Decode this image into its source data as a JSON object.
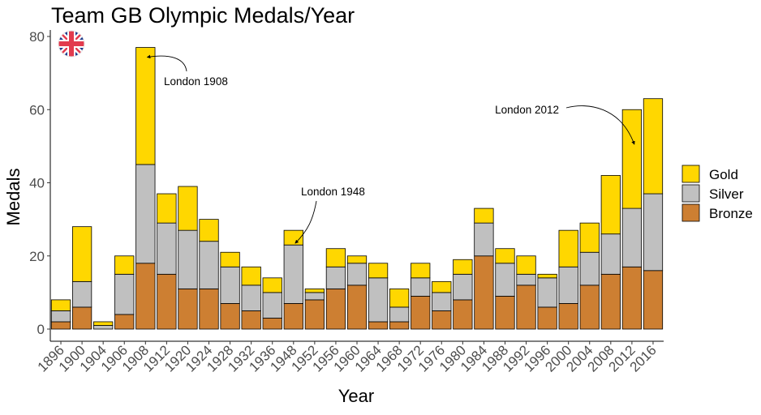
{
  "chart_data": {
    "type": "bar",
    "stacked": true,
    "title": "Team GB Olympic Medals/Year",
    "xlabel": "Year",
    "ylabel": "Medals",
    "ylim": [
      0,
      80
    ],
    "yticks": [
      0,
      20,
      40,
      60,
      80
    ],
    "grid": false,
    "legend_position": "right",
    "categories": [
      "1896",
      "1900",
      "1904",
      "1906",
      "1908",
      "1912",
      "1920",
      "1924",
      "1928",
      "1932",
      "1936",
      "1948",
      "1952",
      "1956",
      "1960",
      "1964",
      "1968",
      "1972",
      "1976",
      "1980",
      "1984",
      "1988",
      "1992",
      "1996",
      "2000",
      "2004",
      "2008",
      "2012",
      "2016"
    ],
    "series": [
      {
        "name": "Bronze",
        "color": "#CD7F32",
        "values": [
          2,
          6,
          0,
          4,
          18,
          15,
          11,
          11,
          7,
          5,
          3,
          7,
          8,
          11,
          12,
          2,
          2,
          9,
          5,
          8,
          20,
          9,
          12,
          6,
          7,
          12,
          15,
          17,
          16
        ]
      },
      {
        "name": "Silver",
        "color": "#C0C0C0",
        "values": [
          3,
          7,
          1,
          11,
          27,
          14,
          16,
          13,
          10,
          7,
          7,
          16,
          2,
          6,
          6,
          12,
          4,
          5,
          5,
          7,
          9,
          9,
          3,
          8,
          10,
          9,
          11,
          16,
          21
        ]
      },
      {
        "name": "Gold",
        "color": "#FFD700",
        "values": [
          3,
          15,
          1,
          5,
          32,
          8,
          12,
          6,
          4,
          5,
          4,
          4,
          1,
          5,
          2,
          4,
          5,
          4,
          3,
          4,
          4,
          4,
          5,
          1,
          10,
          8,
          16,
          27,
          26
        ]
      }
    ],
    "legend": [
      "Gold",
      "Silver",
      "Bronze"
    ],
    "annotations": [
      {
        "text": "London 1908",
        "category": "1908"
      },
      {
        "text": "London 1948",
        "category": "1948"
      },
      {
        "text": "London 2012",
        "category": "2012"
      }
    ],
    "logo_icon": "union-jack-flag-icon"
  }
}
